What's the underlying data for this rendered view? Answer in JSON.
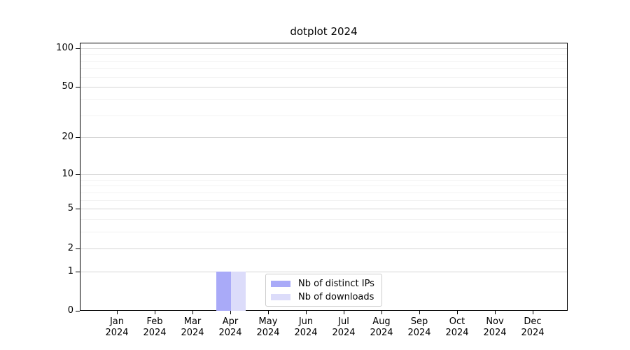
{
  "chart_data": {
    "type": "bar",
    "title": "dotplot 2024",
    "x_categories": [
      "Jan 2024",
      "Feb 2024",
      "Mar 2024",
      "Apr 2024",
      "May 2024",
      "Jun 2024",
      "Jul 2024",
      "Aug 2024",
      "Sep 2024",
      "Oct 2024",
      "Nov 2024",
      "Dec 2024"
    ],
    "series": [
      {
        "name": "Nb of distinct IPs",
        "color": "#a9aaf8",
        "values": [
          0,
          0,
          0,
          1,
          0,
          0,
          0,
          0,
          0,
          0,
          0,
          0
        ]
      },
      {
        "name": "Nb of downloads",
        "color": "#dcdcfa",
        "values": [
          0,
          0,
          0,
          1,
          0,
          0,
          0,
          0,
          0,
          0,
          0,
          0
        ]
      }
    ],
    "yscale": "log1p",
    "ylim": [
      0,
      110
    ],
    "y_major_ticks": [
      0,
      1,
      2,
      5,
      10,
      20,
      50,
      100
    ],
    "y_major_gridlines": [
      1,
      2,
      5,
      10,
      20,
      50,
      100
    ],
    "y_minor_gridlines": [
      3,
      4,
      6,
      7,
      8,
      9,
      30,
      40,
      60,
      70,
      80,
      90
    ],
    "grid": true,
    "legend_position": "inside-bottom-center"
  },
  "legend": {
    "items": [
      {
        "label": "Nb of distinct IPs",
        "color": "#a9aaf8"
      },
      {
        "label": "Nb of downloads",
        "color": "#dcdcfa"
      }
    ]
  },
  "colors": {
    "bar_distinct_ips": "#a9aaf8",
    "bar_downloads": "#dcdcfa",
    "grid_major": "#d4d4d4",
    "grid_minor": "#f2f2f2",
    "axis": "#000000",
    "background": "#ffffff"
  }
}
